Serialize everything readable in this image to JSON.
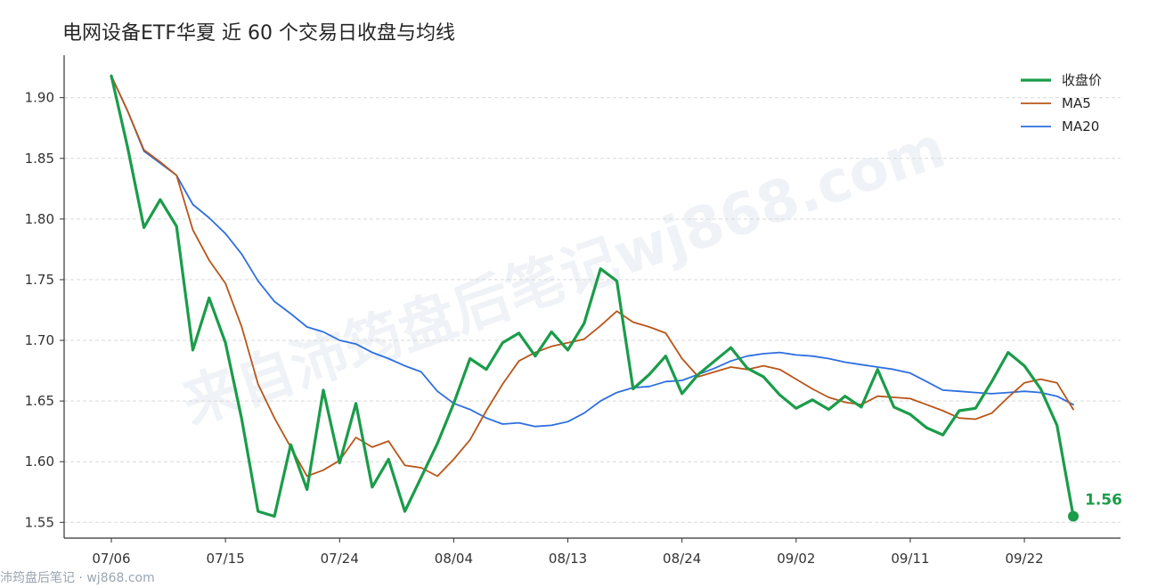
{
  "chart_data": {
    "type": "line",
    "title": "电网设备ETF华夏 近 60 个交易日收盘与均线",
    "xlabel": "",
    "ylabel": "",
    "ylim": [
      1.537,
      1.935
    ],
    "yticks": [
      "1.55",
      "1.60",
      "1.65",
      "1.70",
      "1.75",
      "1.80",
      "1.85",
      "1.90"
    ],
    "xticks": [
      {
        "label": "07/06",
        "index": 0
      },
      {
        "label": "07/15",
        "index": 7
      },
      {
        "label": "07/24",
        "index": 14
      },
      {
        "label": "08/04",
        "index": 21
      },
      {
        "label": "08/13",
        "index": 28
      },
      {
        "label": "08/24",
        "index": 35
      },
      {
        "label": "09/02",
        "index": 42
      },
      {
        "label": "09/11",
        "index": 49
      },
      {
        "label": "09/22",
        "index": 56
      }
    ],
    "grid": "horizontal-dashed",
    "legend_position": "top-right",
    "series": [
      {
        "name": "收盘价",
        "color": "#1a9c4a",
        "width": 3.2,
        "values": [
          1.918,
          1.859,
          1.793,
          1.816,
          1.794,
          1.692,
          1.735,
          1.698,
          1.635,
          1.559,
          1.555,
          1.614,
          1.577,
          1.659,
          1.599,
          1.648,
          1.579,
          1.602,
          1.559,
          1.587,
          1.615,
          1.648,
          1.685,
          1.676,
          1.698,
          1.706,
          1.687,
          1.707,
          1.692,
          1.714,
          1.759,
          1.749,
          1.66,
          1.672,
          1.687,
          1.656,
          1.672,
          1.683,
          1.694,
          1.677,
          1.67,
          1.655,
          1.644,
          1.651,
          1.643,
          1.654,
          1.645,
          1.676,
          1.645,
          1.639,
          1.628,
          1.622,
          1.642,
          1.644,
          1.666,
          1.69,
          1.679,
          1.66,
          1.63,
          1.555
        ]
      },
      {
        "name": "MA5",
        "color": "#b8561a",
        "width": 1.8,
        "values": [
          1.918,
          1.889,
          1.857,
          1.847,
          1.836,
          1.791,
          1.766,
          1.747,
          1.711,
          1.664,
          1.636,
          1.612,
          1.588,
          1.593,
          1.601,
          1.62,
          1.612,
          1.617,
          1.597,
          1.595,
          1.588,
          1.602,
          1.618,
          1.642,
          1.664,
          1.683,
          1.69,
          1.695,
          1.698,
          1.701,
          1.712,
          1.724,
          1.715,
          1.711,
          1.706,
          1.685,
          1.67,
          1.674,
          1.678,
          1.676,
          1.679,
          1.676,
          1.668,
          1.66,
          1.653,
          1.649,
          1.647,
          1.654,
          1.653,
          1.652,
          1.647,
          1.642,
          1.636,
          1.635,
          1.64,
          1.653,
          1.665,
          1.668,
          1.665,
          1.643
        ]
      },
      {
        "name": "MA20",
        "color": "#2e6fe0",
        "width": 1.8,
        "values": [
          1.918,
          1.889,
          1.856,
          1.846,
          1.836,
          1.812,
          1.801,
          1.788,
          1.771,
          1.749,
          1.732,
          1.722,
          1.711,
          1.707,
          1.7,
          1.697,
          1.69,
          1.685,
          1.679,
          1.674,
          1.658,
          1.648,
          1.643,
          1.636,
          1.631,
          1.632,
          1.629,
          1.63,
          1.633,
          1.64,
          1.65,
          1.657,
          1.661,
          1.662,
          1.666,
          1.667,
          1.672,
          1.677,
          1.683,
          1.687,
          1.689,
          1.69,
          1.688,
          1.687,
          1.685,
          1.682,
          1.68,
          1.678,
          1.676,
          1.673,
          1.666,
          1.659,
          1.658,
          1.657,
          1.656,
          1.657,
          1.658,
          1.657,
          1.654,
          1.647
        ]
      }
    ],
    "last_value_label": "1.56"
  },
  "watermark_text": "来自沛筠盘后笔记wj868.com",
  "footer_text": "沛筠盘后笔记 · wj868.com"
}
